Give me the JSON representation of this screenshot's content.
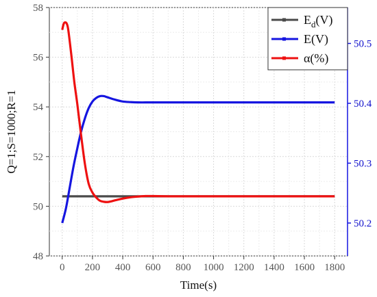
{
  "chart_data": {
    "type": "line",
    "xlabel": "Time(s)",
    "ylabel_left": "Q=1;S=1000;R=1",
    "ylabel_right": "",
    "x_ticks": [
      "0",
      "200",
      "400",
      "600",
      "800",
      "1000",
      "1200",
      "1400",
      "1600",
      "1800"
    ],
    "y_left_ticks": [
      "48",
      "50",
      "52",
      "54",
      "56",
      "58"
    ],
    "y_right_ticks": [
      "50.2",
      "50.3",
      "50.4",
      "50.5"
    ],
    "xlim": [
      -85,
      1885
    ],
    "y_left_lim": [
      48,
      58
    ],
    "y_right_lim": [
      50.145,
      50.56
    ],
    "grid": true,
    "legend_position": "top-right",
    "series": [
      {
        "name": "Ed(V)",
        "legend_main": "E",
        "legend_sub": "d",
        "legend_suffix": "(V)",
        "color": "#4a4a4a",
        "axis": "left",
        "x": [
          0,
          1800
        ],
        "y": [
          50.4,
          50.4
        ]
      },
      {
        "name": "E(V)",
        "legend_main": "E(V)",
        "legend_sub": "",
        "legend_suffix": "",
        "color": "#1515e0",
        "axis": "right",
        "x": [
          0,
          25,
          50,
          75,
          100,
          125,
          150,
          175,
          200,
          225,
          250,
          275,
          300,
          350,
          400,
          450,
          500,
          600,
          800,
          1000,
          1200,
          1400,
          1600,
          1800
        ],
        "y": [
          50.2,
          50.225,
          50.26,
          50.295,
          50.325,
          50.353,
          50.375,
          50.392,
          50.403,
          50.409,
          50.412,
          50.412,
          50.41,
          50.406,
          50.403,
          50.402,
          50.4015,
          50.4015,
          50.4015,
          50.4015,
          50.4015,
          50.4015,
          50.4015,
          50.4015
        ]
      },
      {
        "name": "α(%)",
        "legend_main": "α(%)",
        "legend_sub": "",
        "legend_suffix": "",
        "color": "#ee1111",
        "axis": "left",
        "x": [
          0,
          10,
          20,
          30,
          40,
          60,
          80,
          100,
          125,
          150,
          175,
          200,
          225,
          250,
          275,
          300,
          325,
          350,
          400,
          450,
          500,
          550,
          600,
          700,
          800,
          1000,
          1200,
          1400,
          1600,
          1800
        ],
        "y": [
          57.1,
          57.35,
          57.4,
          57.35,
          57.1,
          56.1,
          55.0,
          54.1,
          52.85,
          51.7,
          50.9,
          50.55,
          50.35,
          50.22,
          50.18,
          50.17,
          50.2,
          50.24,
          50.31,
          50.36,
          50.39,
          50.41,
          50.41,
          50.4,
          50.4,
          50.4,
          50.4,
          50.4,
          50.4,
          50.4
        ]
      }
    ]
  }
}
